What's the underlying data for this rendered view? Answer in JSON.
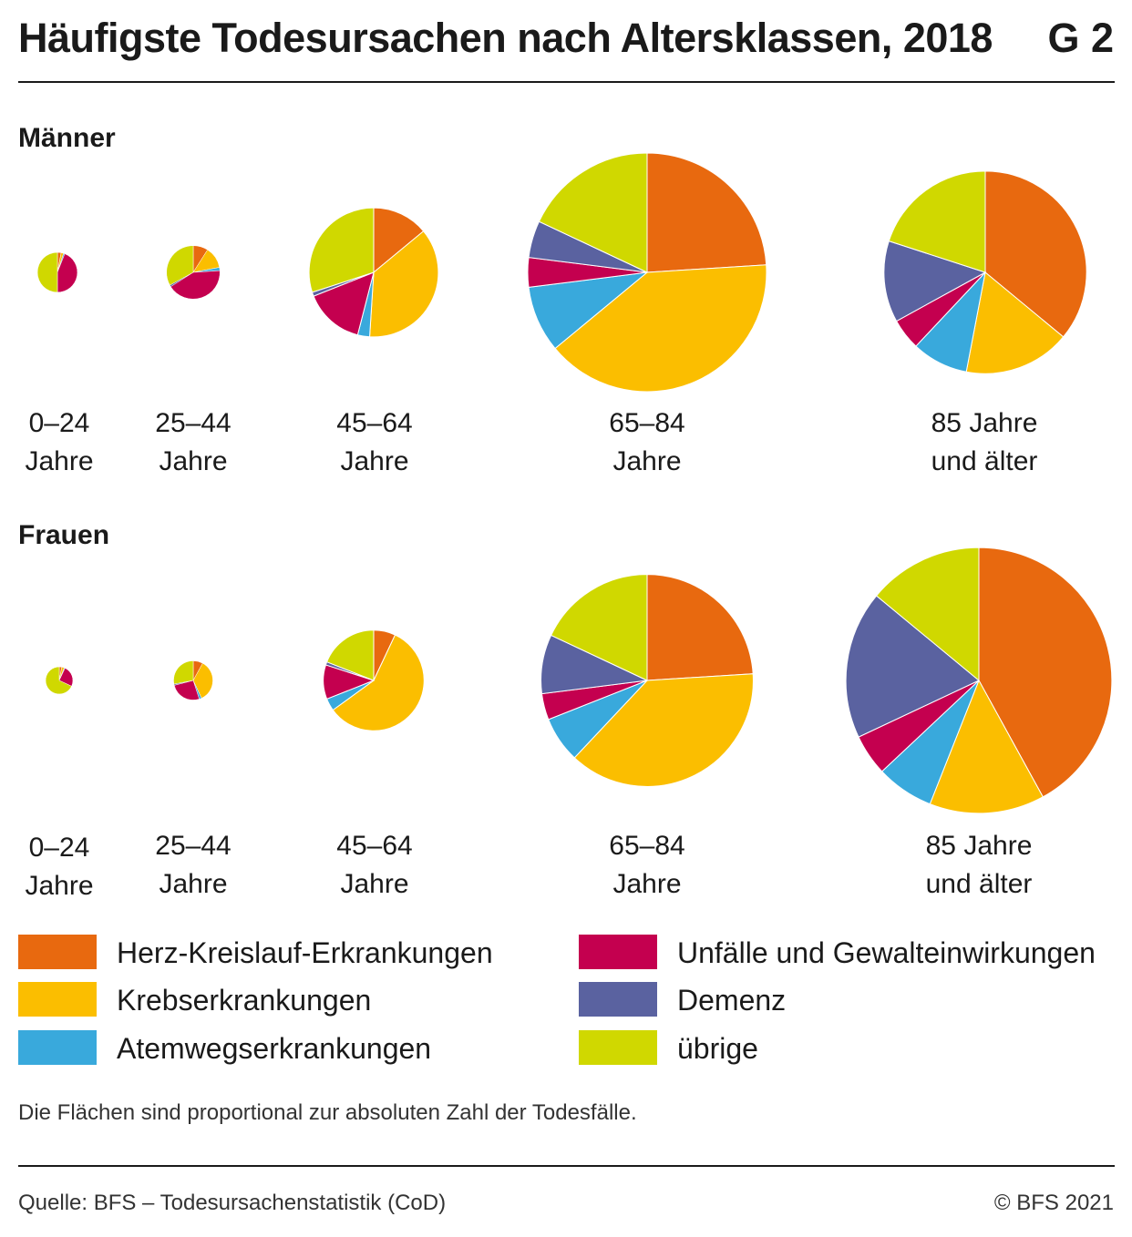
{
  "title": "Häufigste Todesursachen nach Altersklassen, 2018",
  "figure_number": "G 2",
  "note": "Die Flächen sind proportional zur absoluten Zahl der Todesfälle.",
  "source": "Quelle: BFS – Todesursachenstatistik (CoD)",
  "copyright": "© BFS 2021",
  "colors": {
    "herz": "#e8690f",
    "krebs": "#fbbe00",
    "atem": "#39a9dc",
    "unfall": "#c4004f",
    "demenz": "#5a62a0",
    "uebrige": "#d0d800"
  },
  "legend": [
    {
      "key": "herz",
      "label": "Herz-Kreislauf-Erkrankungen"
    },
    {
      "key": "krebs",
      "label": "Krebserkrankungen"
    },
    {
      "key": "atem",
      "label": "Atemwegserkrankungen"
    },
    {
      "key": "unfall",
      "label": "Unfälle und Gewalteinwirkungen"
    },
    {
      "key": "demenz",
      "label": "Demenz"
    },
    {
      "key": "uebrige",
      "label": "übrige"
    }
  ],
  "chart_data": {
    "type": "pie",
    "title": "Häufigste Todesursachen nach Altersklassen, 2018",
    "categories": [
      "Herz-Kreislauf-Erkrankungen",
      "Krebserkrankungen",
      "Atemwegserkrankungen",
      "Unfälle und Gewalteinwirkungen",
      "Demenz",
      "übrige"
    ],
    "value_unit": "Anteil der Todesfälle (%), Kreisfläche proportional zur absoluten Zahl",
    "groups": [
      {
        "name": "Männer",
        "pies": [
          {
            "age_line1": "0–24",
            "age_line2": "Jahre",
            "relative_area": 0.028,
            "values": [
              3,
              2,
              1,
              44,
              0,
              50
            ]
          },
          {
            "age_line1": "25–44",
            "age_line2": "Jahre",
            "relative_area": 0.05,
            "values": [
              9,
              13,
              2,
              42,
              1,
              33
            ]
          },
          {
            "age_line1": "45–64",
            "age_line2": "Jahre",
            "relative_area": 0.293,
            "values": [
              14,
              37,
              3,
              15,
              1,
              30
            ]
          },
          {
            "age_line1": "65–84",
            "age_line2": "Jahre",
            "relative_area": 1.0,
            "values": [
              24,
              40,
              9,
              4,
              5,
              18
            ]
          },
          {
            "age_line1": "85 Jahre",
            "age_line2": "und älter",
            "relative_area": 0.72,
            "values": [
              36,
              17,
              9,
              5,
              13,
              20
            ]
          }
        ]
      },
      {
        "name": "Frauen",
        "pies": [
          {
            "age_line1": "0–24",
            "age_line2": "Jahre",
            "relative_area": 0.013,
            "values": [
              3,
              3,
              1,
              25,
              0,
              68
            ]
          },
          {
            "age_line1": "25–44",
            "age_line2": "Jahre",
            "relative_area": 0.027,
            "values": [
              8,
              35,
              2,
              26,
              1,
              28
            ]
          },
          {
            "age_line1": "45–64",
            "age_line2": "Jahre",
            "relative_area": 0.178,
            "values": [
              7,
              58,
              4,
              11,
              1,
              19
            ]
          },
          {
            "age_line1": "65–84",
            "age_line2": "Jahre",
            "relative_area": 0.79,
            "values": [
              24,
              38,
              7,
              4,
              9,
              18
            ]
          },
          {
            "age_line1": "85 Jahre",
            "age_line2": "und älter",
            "relative_area": 1.24,
            "values": [
              42,
              14,
              7,
              5,
              18,
              14
            ]
          }
        ]
      }
    ]
  }
}
